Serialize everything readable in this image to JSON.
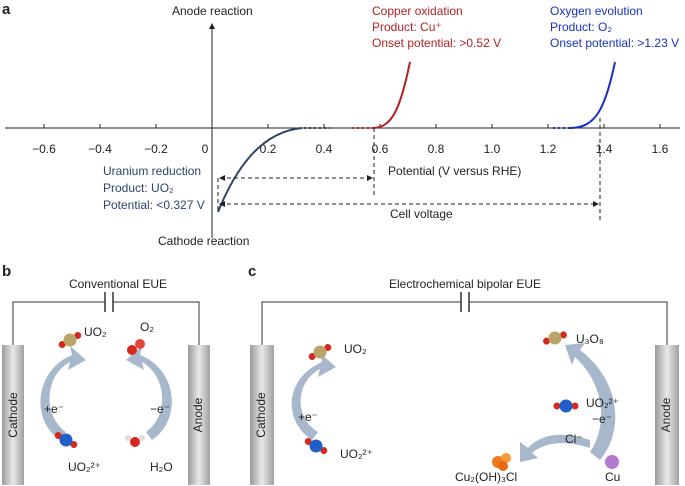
{
  "panel_a": {
    "label": "a",
    "y_axis_top": "Anode reaction",
    "y_axis_bottom": "Cathode reaction",
    "x_axis_label": "Potential (V versus RHE)",
    "xticks": [
      "−0.6",
      "−0.4",
      "−0.2",
      "0",
      "0.2",
      "0.4",
      "0.6",
      "0.8",
      "1.0",
      "1.2",
      "1.4",
      "1.6"
    ],
    "copper": {
      "title": "Copper oxidation",
      "product": "Product: Cu⁺",
      "onset": "Onset potential: >0.52 V"
    },
    "oxygen": {
      "title": "Oxygen evolution",
      "product": "Product: O₂",
      "onset": "Onset potential: >1.23 V"
    },
    "uranium": {
      "title": "Uranium reduction",
      "product": "Product: UO₂",
      "potential": "Potential: <0.327 V"
    },
    "cell_voltage": "Cell voltage"
  },
  "panel_b": {
    "label": "b",
    "title": "Conventional EUE",
    "cathode": "Cathode",
    "anode": "Anode",
    "uo2": "UO₂",
    "o2": "O₂",
    "plus_e": "+e⁻",
    "minus_e": "−e⁻",
    "uranyl": "UO₂²⁺",
    "water": "H₂O"
  },
  "panel_c": {
    "label": "c",
    "title": "Electrochemical bipolar EUE",
    "cathode": "Cathode",
    "anode": "Anode",
    "uo2": "UO₂",
    "plus_e": "+e⁻",
    "uranyl_left": "UO₂²⁺",
    "u3o8": "U₃O₈",
    "uranyl_right": "UO₂²⁺",
    "minus_e": "−e⁻",
    "chloride": "Cl⁻",
    "cu_salt": "Cu₂(OH)₃Cl",
    "cu": "Cu"
  }
}
